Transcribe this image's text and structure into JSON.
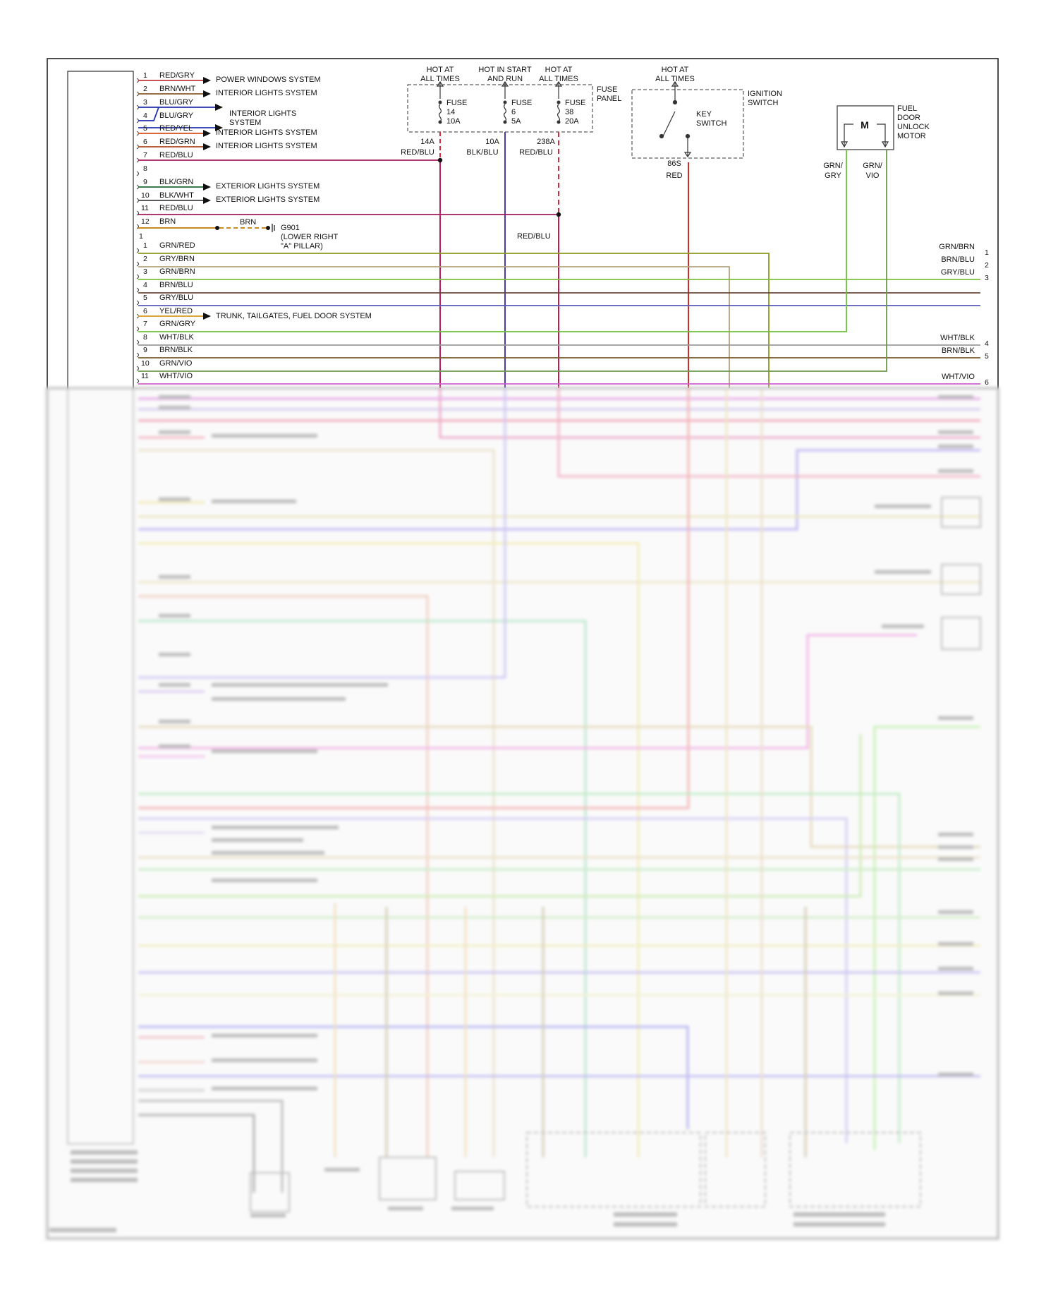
{
  "sources": [
    {
      "label": "HOT AT\nALL TIMES",
      "fuse": "FUSE\n14\n10A",
      "node": "14A",
      "wire": "RED/BLU",
      "color": "#b81d5c"
    },
    {
      "label": "HOT IN START\nAND RUN",
      "fuse": "FUSE\n6\n5A",
      "node": "10A",
      "wire": "BLK/BLU",
      "color": "#4b3e9c"
    },
    {
      "label": "HOT AT\nALL TIMES",
      "fuse": "FUSE\n38\n20A",
      "node": "238A",
      "wire": "RED/BLU",
      "color": "#c8184c"
    }
  ],
  "fuse_panel_label": "FUSE\nPANEL",
  "ignition": {
    "hot": "HOT AT\nALL TIMES",
    "label": "IGNITION\nSWITCH",
    "key": "KEY\nSWITCH",
    "node": "86S",
    "wire": "RED"
  },
  "motor": {
    "label": "FUEL\nDOOR\nUNLOCK\nMOTOR",
    "symbol": "M",
    "left_wire": "GRN/\nGRY",
    "right_wire": "GRN/\nVIO"
  },
  "module_pins_top": [
    {
      "pin": "1",
      "wire": "RED/GRY",
      "color": "#c0393c",
      "dest": "POWER WINDOWS SYSTEM"
    },
    {
      "pin": "2",
      "wire": "BRN/WHT",
      "color": "#8a5a2b",
      "dest": "INTERIOR LIGHTS SYSTEM"
    },
    {
      "pin": "3",
      "wire": "BLU/GRY",
      "color": "#2030b0",
      "dest": "INTERIOR LIGHTS\nSYSTEM"
    },
    {
      "pin": "4",
      "wire": "BLU/GRY",
      "color": "#2030b0",
      "dest": ""
    },
    {
      "pin": "5",
      "wire": "RED/YEL",
      "color": "#d8501e",
      "dest": "INTERIOR LIGHTS SYSTEM"
    },
    {
      "pin": "6",
      "wire": "RED/GRN",
      "color": "#b0461e",
      "dest": "INTERIOR LIGHTS SYSTEM"
    },
    {
      "pin": "7",
      "wire": "RED/BLU",
      "color": "#a4195f",
      "dest": ""
    },
    {
      "pin": "8",
      "wire": "",
      "color": "",
      "dest": ""
    },
    {
      "pin": "9",
      "wire": "BLK/GRN",
      "color": "#1f6a35",
      "dest": "EXTERIOR LIGHTS SYSTEM"
    },
    {
      "pin": "10",
      "wire": "BLK/WHT",
      "color": "#444444",
      "dest": "EXTERIOR LIGHTS SYSTEM"
    },
    {
      "pin": "11",
      "wire": "RED/BLU",
      "color": "#a4195f",
      "dest": ""
    },
    {
      "pin": "12",
      "wire": "BRN",
      "color": "#b07a1e",
      "dest": ""
    }
  ],
  "ground": {
    "wire": "BRN",
    "label": "G901\n(LOWER RIGHT\n\"A\" PILLAR)"
  },
  "red_blu_label": "RED/BLU",
  "connector2_first_pin": "1",
  "module_pins_second": [
    {
      "pin": "1",
      "wire": "GRN/RED",
      "color": "#8a9a1e",
      "dest": ""
    },
    {
      "pin": "2",
      "wire": "GRY/BRN",
      "color": "#b5a27c",
      "dest": ""
    },
    {
      "pin": "3",
      "wire": "GRN/BRN",
      "color": "#7cc13a",
      "dest": ""
    },
    {
      "pin": "4",
      "wire": "BRN/BLU",
      "color": "#6b4a3a",
      "dest": ""
    },
    {
      "pin": "5",
      "wire": "GRY/BLU",
      "color": "#5a5ab8",
      "dest": ""
    },
    {
      "pin": "6",
      "wire": "YEL/RED",
      "color": "#d89a1e",
      "dest": "TRUNK, TAILGATES, FUEL DOOR SYSTEM"
    },
    {
      "pin": "7",
      "wire": "GRN/GRY",
      "color": "#6cc13a",
      "dest": ""
    },
    {
      "pin": "8",
      "wire": "WHT/BLK",
      "color": "#9a9a9a",
      "dest": ""
    },
    {
      "pin": "9",
      "wire": "BRN/BLK",
      "color": "#7a5a2a",
      "dest": ""
    },
    {
      "pin": "10",
      "wire": "GRN/VIO",
      "color": "#6a9a4a",
      "dest": ""
    },
    {
      "pin": "11",
      "wire": "WHT/VIO",
      "color": "#d060d0",
      "dest": ""
    }
  ],
  "right_outputs": [
    {
      "wire": "GRN/BRN",
      "num": "1"
    },
    {
      "wire": "BRN/BLU",
      "num": "2"
    },
    {
      "wire": "GRY/BLU",
      "num": "3"
    },
    {
      "wire": "WHT/BLK",
      "num": "4"
    },
    {
      "wire": "BRN/BLK",
      "num": "5"
    },
    {
      "wire": "WHT/VIO",
      "num": "6"
    }
  ]
}
